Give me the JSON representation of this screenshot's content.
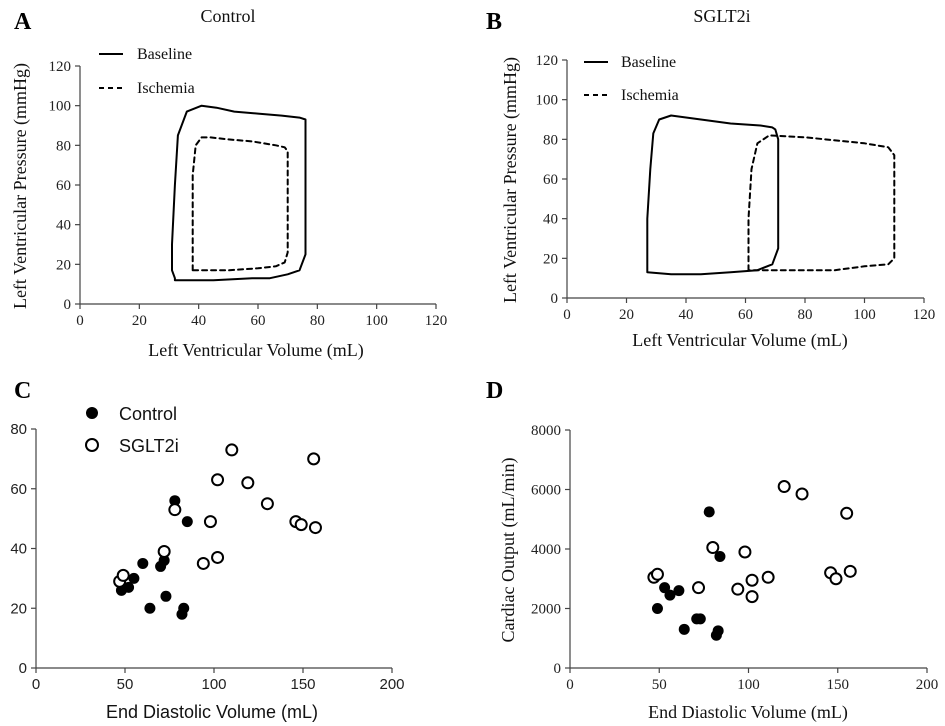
{
  "chart_data": [
    {
      "panel": "A",
      "type": "line",
      "title": "Control",
      "xlabel": "Left Ventricular Volume (mL)",
      "ylabel": "Left Ventricular Pressure (mmHg)",
      "xlim": [
        0,
        120
      ],
      "ylim": [
        0,
        120
      ],
      "xticks": [
        0,
        20,
        40,
        60,
        80,
        100,
        120
      ],
      "yticks": [
        0,
        20,
        40,
        60,
        80,
        100,
        120
      ],
      "legend": "top-left",
      "series": [
        {
          "name": "Baseline",
          "style": "solid",
          "x": [
            32,
            31,
            31,
            32,
            33,
            36,
            41,
            46,
            52,
            60,
            68,
            74,
            76,
            76,
            76,
            76,
            74,
            70,
            64,
            58,
            45,
            32,
            32
          ],
          "y": [
            13,
            17,
            30,
            60,
            85,
            97,
            100,
            99,
            97,
            96,
            95,
            94,
            93,
            80,
            50,
            25,
            17,
            15,
            13,
            13,
            12,
            12,
            13
          ]
        },
        {
          "name": "Ischemia",
          "style": "dashed",
          "x": [
            38,
            38,
            38,
            38,
            39,
            41,
            44,
            50,
            58,
            66,
            69,
            70,
            70,
            70,
            70,
            69,
            66,
            60,
            50,
            38
          ],
          "y": [
            17,
            20,
            40,
            65,
            80,
            84,
            84,
            83,
            82,
            80,
            79,
            77,
            60,
            40,
            26,
            21,
            19,
            18,
            17,
            17
          ]
        }
      ]
    },
    {
      "panel": "B",
      "type": "line",
      "title": "SGLT2i",
      "xlabel": "Left Ventricular Volume (mL)",
      "ylabel": "Left Ventricular Pressure (mmHg)",
      "xlim": [
        0,
        120
      ],
      "ylim": [
        0,
        120
      ],
      "xticks": [
        0,
        20,
        40,
        60,
        80,
        100,
        120
      ],
      "yticks": [
        0,
        20,
        40,
        60,
        80,
        100,
        120
      ],
      "legend": "top-left",
      "series": [
        {
          "name": "Baseline",
          "style": "solid",
          "x": [
            27,
            27,
            27,
            28,
            29,
            31,
            35,
            45,
            55,
            65,
            69,
            70,
            71,
            71,
            71,
            69,
            64,
            55,
            45,
            35,
            27
          ],
          "y": [
            13,
            20,
            40,
            65,
            83,
            90,
            92,
            90,
            88,
            87,
            86,
            85,
            80,
            50,
            25,
            17,
            14,
            13,
            12,
            12,
            13
          ]
        },
        {
          "name": "Ischemia",
          "style": "dashed",
          "x": [
            61,
            61,
            61,
            62,
            64,
            68,
            80,
            100,
            108,
            110,
            110,
            110,
            108,
            100,
            90,
            75,
            65,
            61
          ],
          "y": [
            14,
            20,
            40,
            65,
            78,
            82,
            81,
            78,
            76,
            72,
            50,
            20,
            17,
            16,
            14,
            14,
            14,
            14
          ]
        }
      ]
    },
    {
      "panel": "C",
      "type": "scatter",
      "title": "",
      "xlabel": "End Diastolic Volume (mL)",
      "ylabel": "",
      "xlim": [
        0,
        200
      ],
      "ylim": [
        0,
        80
      ],
      "xticks": [
        0,
        50,
        100,
        150,
        200
      ],
      "yticks": [
        0,
        20,
        40,
        60,
        80
      ],
      "legend": "top-left",
      "series": [
        {
          "name": "Control",
          "marker": "filled",
          "x": [
            78,
            85,
            48,
            52,
            55,
            60,
            70,
            72,
            73,
            64,
            83,
            82
          ],
          "y": [
            56,
            49,
            26,
            27,
            30,
            35,
            34,
            36,
            24,
            20,
            20,
            18
          ]
        },
        {
          "name": "SGLT2i",
          "marker": "open",
          "x": [
            110,
            156,
            102,
            119,
            130,
            78,
            98,
            146,
            149,
            157,
            102,
            94,
            72,
            47,
            49
          ],
          "y": [
            73,
            70,
            63,
            62,
            55,
            53,
            49,
            49,
            48,
            47,
            37,
            35,
            39,
            29,
            31
          ]
        }
      ]
    },
    {
      "panel": "D",
      "type": "scatter",
      "title": "",
      "xlabel": "End Diastolic Volume (mL)",
      "ylabel": "Cardiac Output (mL/min)",
      "xlim": [
        0,
        200
      ],
      "ylim": [
        0,
        8000
      ],
      "xticks": [
        0,
        50,
        100,
        150,
        200
      ],
      "yticks": [
        0,
        2000,
        4000,
        6000,
        8000
      ],
      "series": [
        {
          "name": "Control",
          "marker": "filled",
          "x": [
            78,
            84,
            53,
            56,
            61,
            49,
            71,
            73,
            64,
            83,
            82
          ],
          "y": [
            5250,
            3750,
            2700,
            2450,
            2600,
            2000,
            1650,
            1650,
            1300,
            1250,
            1100
          ]
        },
        {
          "name": "SGLT2i",
          "marker": "open",
          "x": [
            120,
            130,
            155,
            80,
            98,
            47,
            49,
            72,
            111,
            102,
            94,
            102,
            146,
            149,
            157
          ],
          "y": [
            6100,
            5850,
            5200,
            4050,
            3900,
            3050,
            3150,
            2700,
            3050,
            2950,
            2650,
            2400,
            3200,
            3000,
            3250
          ]
        }
      ]
    }
  ]
}
